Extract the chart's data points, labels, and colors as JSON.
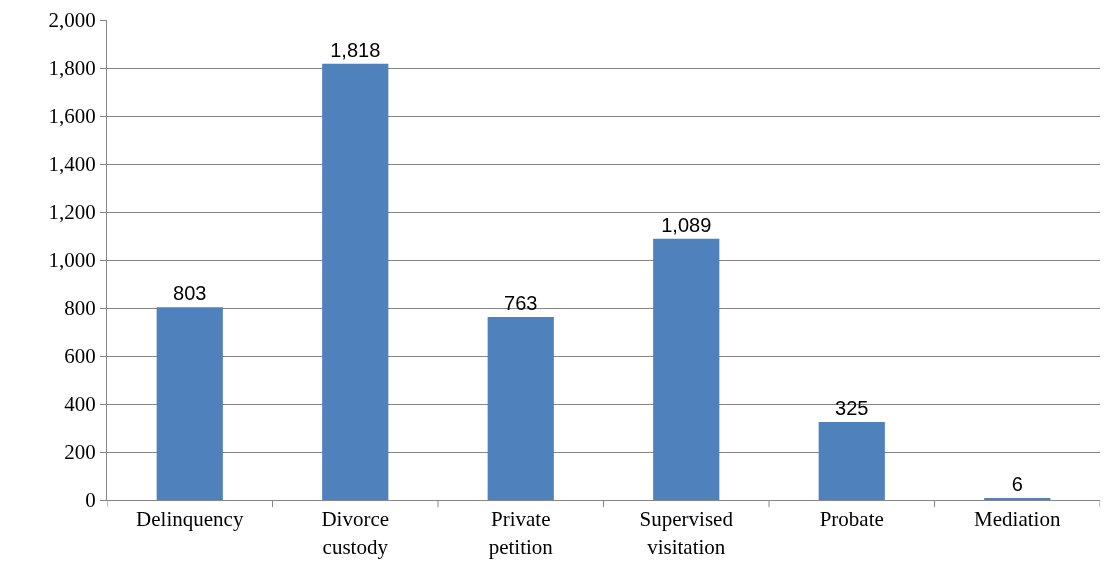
{
  "chart_data": {
    "type": "bar",
    "categories": [
      "Delinquency",
      "Divorce custody",
      "Private petition",
      "Supervised visitation",
      "Probate",
      "Mediation"
    ],
    "values": [
      803,
      1818,
      763,
      1089,
      325,
      6
    ],
    "color": "#4f81bd",
    "ylim": [
      0,
      2000
    ],
    "yticks": [
      {
        "value": 0,
        "label": "0"
      },
      {
        "value": 200,
        "label": "200"
      },
      {
        "value": 400,
        "label": "400"
      },
      {
        "value": 600,
        "label": "600"
      },
      {
        "value": 800,
        "label": "800"
      },
      {
        "value": 1000,
        "label": "1,000"
      },
      {
        "value": 1200,
        "label": "1,200"
      },
      {
        "value": 1400,
        "label": "1,400"
      },
      {
        "value": 1600,
        "label": "1,600"
      },
      {
        "value": 1800,
        "label": "1,800"
      },
      {
        "value": 2000,
        "label": "2,000"
      }
    ],
    "value_labels": [
      "803",
      "1,818",
      "763",
      "1,089",
      "325",
      "6"
    ],
    "grid": "y",
    "legend": false
  }
}
